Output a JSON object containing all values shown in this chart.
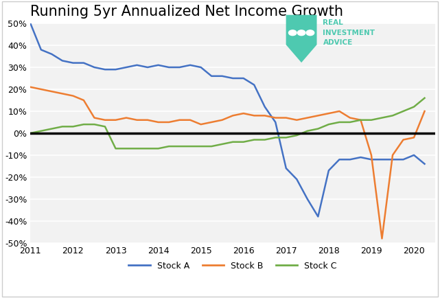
{
  "title": "Running 5yr Annualized Net Income Growth",
  "ylim": [
    -0.5,
    0.5
  ],
  "xlim": [
    2011.0,
    2020.5
  ],
  "yticks": [
    -0.5,
    -0.4,
    -0.3,
    -0.2,
    -0.1,
    0.0,
    0.1,
    0.2,
    0.3,
    0.4,
    0.5
  ],
  "xticks": [
    2011,
    2012,
    2013,
    2014,
    2015,
    2016,
    2017,
    2018,
    2019,
    2020
  ],
  "stock_a_color": "#4472C4",
  "stock_b_color": "#ED7D31",
  "stock_c_color": "#70AD47",
  "plot_bg_color": "#F2F2F2",
  "fig_bg_color": "#FFFFFF",
  "zero_line_color": "#000000",
  "grid_color": "#FFFFFF",
  "shield_color": "#4EC9B0",
  "logo_text_color": "#4EC9B0",
  "stock_a_x": [
    2011.0,
    2011.25,
    2011.5,
    2011.75,
    2012.0,
    2012.25,
    2012.5,
    2012.75,
    2013.0,
    2013.25,
    2013.5,
    2013.75,
    2014.0,
    2014.25,
    2014.5,
    2014.75,
    2015.0,
    2015.25,
    2015.5,
    2015.75,
    2016.0,
    2016.25,
    2016.5,
    2016.75,
    2017.0,
    2017.25,
    2017.5,
    2017.75,
    2018.0,
    2018.25,
    2018.5,
    2018.75,
    2019.0,
    2019.25,
    2019.5,
    2019.75,
    2020.0,
    2020.25
  ],
  "stock_a_y": [
    0.5,
    0.38,
    0.36,
    0.33,
    0.32,
    0.32,
    0.3,
    0.29,
    0.29,
    0.3,
    0.31,
    0.3,
    0.31,
    0.3,
    0.3,
    0.31,
    0.3,
    0.26,
    0.26,
    0.25,
    0.25,
    0.22,
    0.12,
    0.05,
    -0.16,
    -0.21,
    -0.3,
    -0.38,
    -0.17,
    -0.12,
    -0.12,
    -0.11,
    -0.12,
    -0.12,
    -0.12,
    -0.12,
    -0.1,
    -0.14
  ],
  "stock_b_x": [
    2011.0,
    2011.25,
    2011.5,
    2011.75,
    2012.0,
    2012.25,
    2012.5,
    2012.75,
    2013.0,
    2013.25,
    2013.5,
    2013.75,
    2014.0,
    2014.25,
    2014.5,
    2014.75,
    2015.0,
    2015.25,
    2015.5,
    2015.75,
    2016.0,
    2016.25,
    2016.5,
    2016.75,
    2017.0,
    2017.25,
    2017.5,
    2017.75,
    2018.0,
    2018.25,
    2018.5,
    2018.75,
    2019.0,
    2019.25,
    2019.5,
    2019.75,
    2020.0,
    2020.25
  ],
  "stock_b_y": [
    0.21,
    0.2,
    0.19,
    0.18,
    0.17,
    0.15,
    0.07,
    0.06,
    0.06,
    0.07,
    0.06,
    0.06,
    0.05,
    0.05,
    0.06,
    0.06,
    0.04,
    0.05,
    0.06,
    0.08,
    0.09,
    0.08,
    0.08,
    0.07,
    0.07,
    0.06,
    0.07,
    0.08,
    0.09,
    0.1,
    0.07,
    0.06,
    -0.1,
    -0.48,
    -0.1,
    -0.03,
    -0.02,
    0.1
  ],
  "stock_c_x": [
    2011.0,
    2011.25,
    2011.5,
    2011.75,
    2012.0,
    2012.25,
    2012.5,
    2012.75,
    2013.0,
    2013.25,
    2013.5,
    2013.75,
    2014.0,
    2014.25,
    2014.5,
    2014.75,
    2015.0,
    2015.25,
    2015.5,
    2015.75,
    2016.0,
    2016.25,
    2016.5,
    2016.75,
    2017.0,
    2017.25,
    2017.5,
    2017.75,
    2018.0,
    2018.25,
    2018.5,
    2018.75,
    2019.0,
    2019.25,
    2019.5,
    2019.75,
    2020.0,
    2020.25
  ],
  "stock_c_y": [
    0.0,
    0.01,
    0.02,
    0.03,
    0.03,
    0.04,
    0.04,
    0.03,
    -0.07,
    -0.07,
    -0.07,
    -0.07,
    -0.07,
    -0.06,
    -0.06,
    -0.06,
    -0.06,
    -0.06,
    -0.05,
    -0.04,
    -0.04,
    -0.03,
    -0.03,
    -0.02,
    -0.02,
    -0.01,
    0.01,
    0.02,
    0.04,
    0.05,
    0.05,
    0.06,
    0.06,
    0.07,
    0.08,
    0.1,
    0.12,
    0.16
  ],
  "legend_labels": [
    "Stock A",
    "Stock B",
    "Stock C"
  ],
  "title_fontsize": 15,
  "tick_fontsize": 9,
  "legend_fontsize": 9
}
